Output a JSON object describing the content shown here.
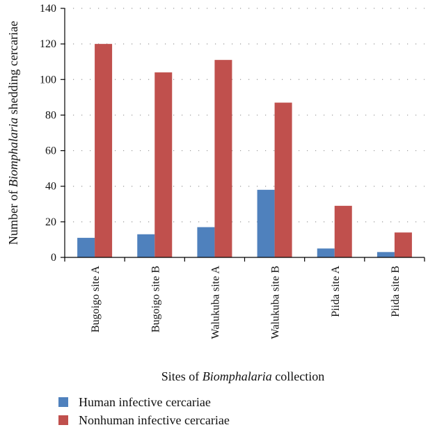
{
  "chart_data": {
    "type": "bar",
    "categories": [
      "Bugoigo site A",
      "Bugoigo site B",
      "Walukuba site A",
      "Walukuba site B",
      "Piida site A",
      "Piida site B"
    ],
    "series": [
      {
        "name": "Human infective cercariae",
        "color": "#4f81bd",
        "values": [
          11,
          13,
          17,
          38,
          5,
          3
        ]
      },
      {
        "name": "Nonhuman infective cercariae",
        "color": "#c0504d",
        "values": [
          120,
          104,
          111,
          87,
          29,
          14
        ]
      }
    ],
    "ylim": [
      0,
      140
    ],
    "yticks": [
      0,
      20,
      40,
      60,
      80,
      100,
      120,
      140
    ],
    "ylabel": {
      "pre": "Number of ",
      "italic": "Biomphalaria",
      "post": " shedding cercariae"
    },
    "xlabel": {
      "pre": "Sites of ",
      "italic": "Biomphalaria",
      "post": " collection"
    },
    "grid": "horizontal-dotted",
    "legend_position": "bottom-left"
  }
}
